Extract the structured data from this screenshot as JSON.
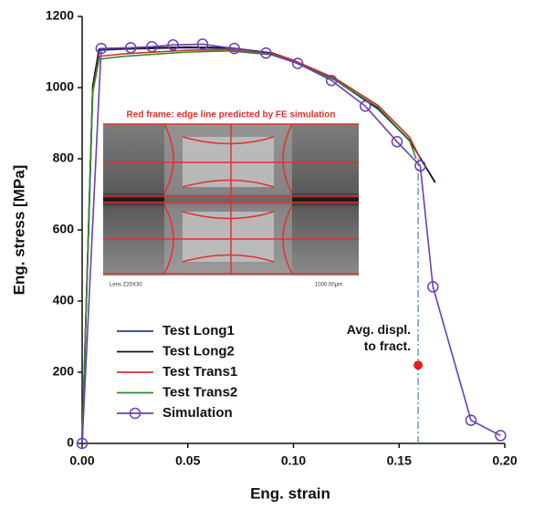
{
  "chart_data": {
    "type": "line",
    "xlabel": "Eng. strain",
    "ylabel": "Eng. stress [MPa]",
    "xlim": [
      0,
      0.2
    ],
    "ylim": [
      0,
      1200
    ],
    "xticks": [
      {
        "value": 0,
        "label": "0.00"
      },
      0.05,
      {
        "value": 0.1,
        "label": "0.10"
      },
      0.15,
      {
        "value": 0.2,
        "label": "0.20"
      }
    ],
    "yticks": [
      0,
      200,
      400,
      600,
      800,
      1000,
      1200
    ],
    "legend": "lower left",
    "series": [
      {
        "name": "Test Long1",
        "color": "#2b3a8f",
        "x": [
          0,
          0.005,
          0.008,
          0.02,
          0.05,
          0.07,
          0.09,
          0.1,
          0.12,
          0.14,
          0.155,
          0.167
        ],
        "values": [
          0,
          1000,
          1105,
          1108,
          1112,
          1110,
          1095,
          1075,
          1020,
          940,
          850,
          735
        ]
      },
      {
        "name": "Test Long2",
        "color": "#111111",
        "x": [
          0,
          0.005,
          0.008,
          0.02,
          0.05,
          0.07,
          0.09,
          0.1,
          0.12,
          0.14,
          0.155,
          0.167
        ],
        "values": [
          0,
          1005,
          1108,
          1110,
          1114,
          1112,
          1097,
          1077,
          1022,
          942,
          852,
          733
        ]
      },
      {
        "name": "Test Trans1",
        "color": "#d9312b",
        "x": [
          0,
          0.005,
          0.008,
          0.02,
          0.05,
          0.07,
          0.09,
          0.1,
          0.12,
          0.14,
          0.155,
          0.16
        ],
        "values": [
          0,
          990,
          1088,
          1095,
          1105,
          1107,
          1095,
          1077,
          1025,
          950,
          860,
          800
        ]
      },
      {
        "name": "Test Trans2",
        "color": "#2e8b2e",
        "x": [
          0,
          0.005,
          0.008,
          0.02,
          0.05,
          0.07,
          0.09,
          0.1,
          0.12,
          0.14,
          0.155,
          0.158
        ],
        "values": [
          0,
          985,
          1080,
          1088,
          1100,
          1103,
          1092,
          1072,
          1020,
          945,
          850,
          800
        ]
      },
      {
        "name": "Simulation",
        "color": "#6a3fb5",
        "marker": "circle",
        "x": [
          0,
          0.009,
          0.023,
          0.033,
          0.043,
          0.057,
          0.072,
          0.087,
          0.102,
          0.118,
          0.134,
          0.149,
          0.16,
          0.166,
          0.184,
          0.198
        ],
        "values": [
          0,
          1110,
          1112,
          1115,
          1120,
          1122,
          1110,
          1097,
          1068,
          1020,
          948,
          848,
          780,
          440,
          65,
          22
        ]
      }
    ],
    "annotation": {
      "lines": [
        "Avg. displ.",
        "to fract."
      ],
      "x": 0.159,
      "y": 220,
      "color": "#e02020"
    },
    "inset": {
      "caption": "Red frame: edge line predicted by FE simulation",
      "lens": "Lens Z20X30",
      "scale": "1000.00μm"
    }
  }
}
